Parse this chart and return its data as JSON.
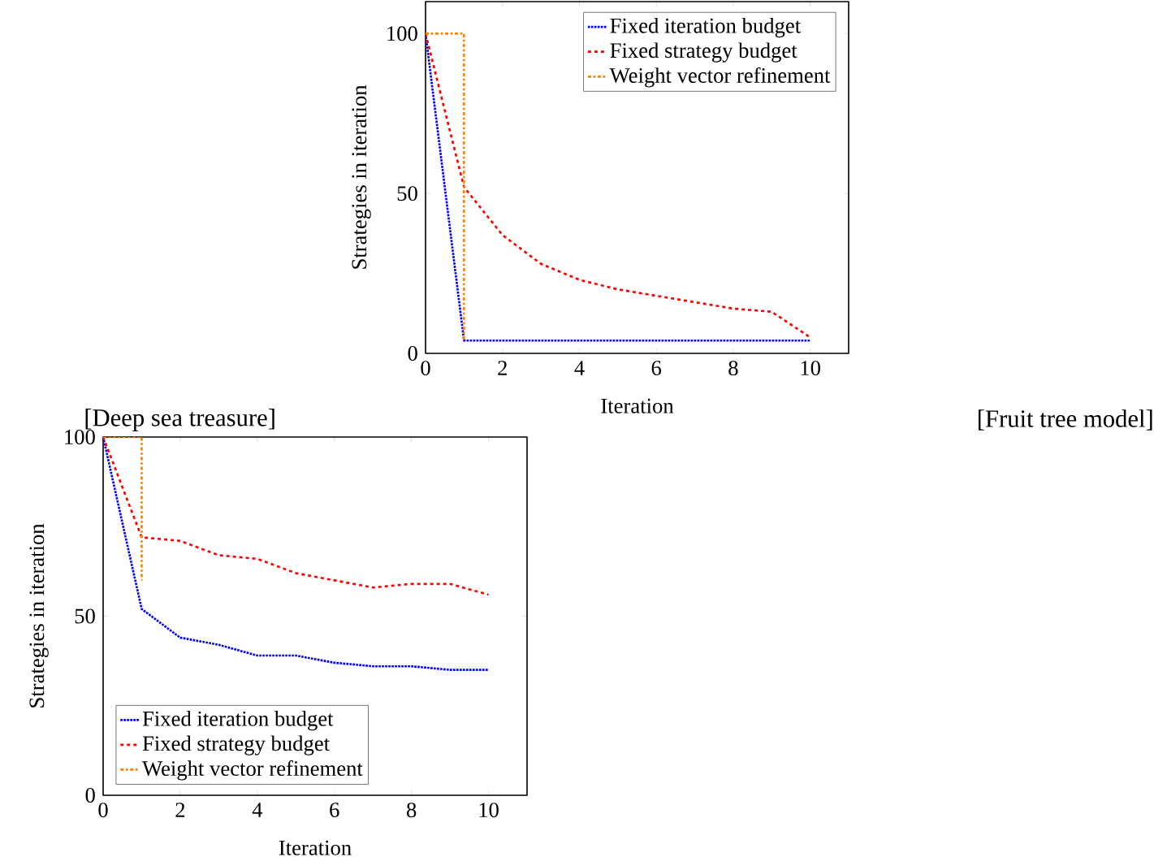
{
  "chart_data": [
    {
      "type": "line",
      "xlabel": "Iteration",
      "ylabel": "Strategies in iteration",
      "xlim": [
        0,
        11
      ],
      "ylim": [
        0,
        110
      ],
      "xticks": [
        0,
        2,
        4,
        6,
        8,
        10
      ],
      "yticks": [
        0,
        50,
        100
      ],
      "legend": "top right",
      "annotations": [
        "[Fruit tree model]"
      ],
      "series": [
        {
          "name": "Fixed iteration budget",
          "color": "#0000ff",
          "line_style": "dotted",
          "x": [
            0,
            1,
            2,
            3,
            4,
            5,
            6,
            7,
            8,
            9,
            10
          ],
          "values": [
            100,
            4,
            4,
            4,
            4,
            4,
            4,
            4,
            4,
            4,
            4
          ]
        },
        {
          "name": "Fixed strategy budget",
          "color": "#ff0000",
          "line_style": "dashed",
          "x": [
            0,
            1,
            2,
            3,
            4,
            5,
            6,
            7,
            8,
            9,
            10
          ],
          "values": [
            100,
            52,
            37,
            28,
            23,
            20,
            18,
            16,
            14,
            13,
            5
          ]
        },
        {
          "name": "Weight vector refinement",
          "color": "#ff8000",
          "line_style": "dashdot",
          "x": [
            0,
            1,
            1
          ],
          "values": [
            100,
            100,
            4
          ]
        }
      ]
    },
    {
      "type": "line",
      "xlabel": "Iteration",
      "ylabel": "Strategies in iteration",
      "xlim": [
        0,
        11
      ],
      "ylim": [
        0,
        100
      ],
      "xticks": [
        0,
        2,
        4,
        6,
        8,
        10
      ],
      "yticks": [
        0,
        50,
        100
      ],
      "legend": "bottom left",
      "annotations": [
        "[Deep sea treasure]"
      ],
      "series": [
        {
          "name": "Fixed iteration budget",
          "color": "#0000ff",
          "line_style": "dotted",
          "x": [
            0,
            1,
            2,
            3,
            4,
            5,
            6,
            7,
            8,
            9,
            10
          ],
          "values": [
            100,
            52,
            44,
            42,
            39,
            39,
            37,
            36,
            36,
            35,
            35
          ]
        },
        {
          "name": "Fixed strategy budget",
          "color": "#ff0000",
          "line_style": "dashed",
          "x": [
            0,
            1,
            2,
            3,
            4,
            5,
            6,
            7,
            8,
            9,
            10
          ],
          "values": [
            100,
            72,
            71,
            67,
            66,
            62,
            60,
            58,
            59,
            59,
            56
          ]
        },
        {
          "name": "Weight vector refinement",
          "color": "#ff8000",
          "line_style": "dashdot",
          "x": [
            0,
            1,
            1
          ],
          "values": [
            100,
            100,
            60
          ]
        }
      ]
    }
  ]
}
